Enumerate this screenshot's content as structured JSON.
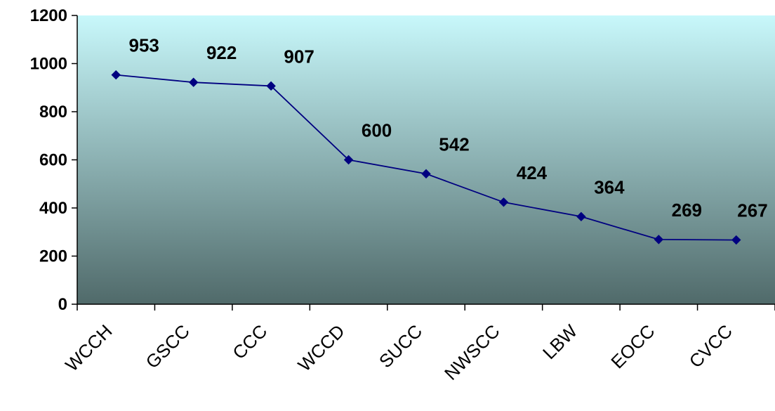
{
  "chart_data": {
    "type": "line",
    "title": "",
    "xlabel": "",
    "ylabel": "",
    "categories": [
      "WCCH",
      "GSCC",
      "CCC",
      "WCCD",
      "SUCC",
      "NWSCC",
      "LBW",
      "EOCC",
      "CVCC"
    ],
    "series": [
      {
        "values": [
          953,
          922,
          907,
          600,
          542,
          424,
          364,
          269,
          267
        ]
      }
    ],
    "ylim": [
      0,
      1200
    ],
    "yticks": [
      0,
      200,
      400,
      600,
      800,
      1000,
      1200
    ],
    "grid": false,
    "legend": "none",
    "data_labels": true,
    "colors": {
      "line": "#000080",
      "marker": "#000080",
      "plot_bg_top": "#c8f8fb",
      "plot_bg_bottom": "#506a6a",
      "axis": "#000000"
    }
  }
}
